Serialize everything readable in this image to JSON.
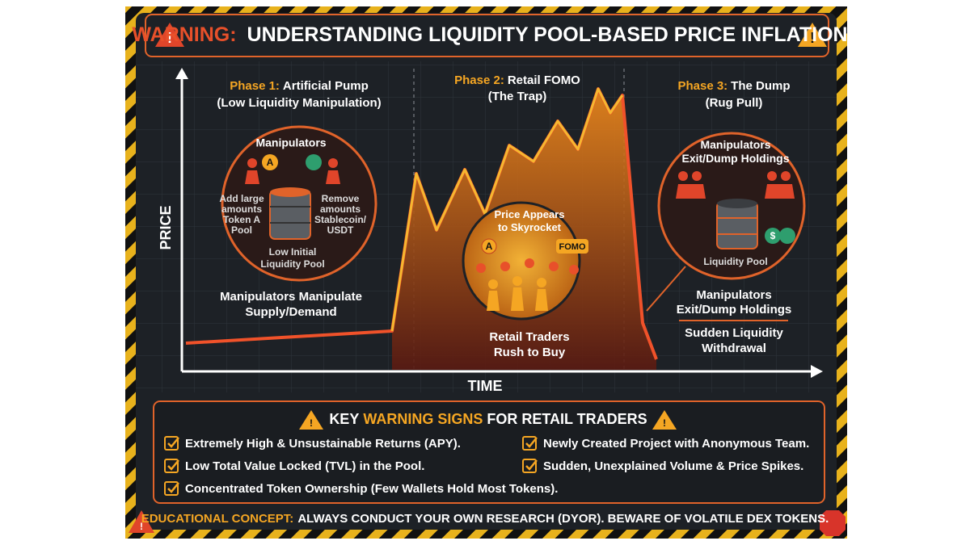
{
  "header": {
    "title_prefix": "WARNING:",
    "title": "UNDERSTANDING LIQUIDITY POOL-BASED PRICE INFLATION"
  },
  "chart": {
    "y_axis": "PRICE",
    "x_axis": "TIME"
  },
  "phases": [
    {
      "label": "Phase 1:",
      "name": "Artificial Pump",
      "subtitle": "(Low Liquidity Manipulation)",
      "circle_title": "Manipulators",
      "coin": "A",
      "left_note": [
        "Add large",
        "amounts",
        "Token A",
        "Pool"
      ],
      "right_note": [
        "Remove",
        "amounts",
        "Stablecoin/",
        "USDT"
      ],
      "pool_label": [
        "Low Initial",
        "Liquidity Pool"
      ],
      "caption": [
        "Manipulators Manipulate",
        "Supply/Demand"
      ]
    },
    {
      "label": "Phase 2:",
      "name": "Retail FOMO",
      "subtitle": "(The Trap)",
      "circle_title": [
        "Price Appears",
        "to Skyrocket"
      ],
      "coin": "A",
      "badge": "FOMO",
      "caption": [
        "Retail Traders",
        "Rush to Buy"
      ]
    },
    {
      "label": "Phase 3:",
      "name": "The Dump",
      "subtitle": "(Rug Pull)",
      "circle_title": [
        "Manipulators",
        "Exit/Dump Holdings"
      ],
      "coin": "$",
      "pool_label": "Liquidity Pool",
      "caption": [
        "Manipulators",
        "Exit/Dump Holdings"
      ],
      "caption2": [
        "Sudden Liquidity",
        "Withdrawal"
      ]
    }
  ],
  "warning_signs": {
    "title_prefix": "KEY",
    "title_highlight": "WARNING SIGNS",
    "title_suffix": "FOR RETAIL TRADERS",
    "items": [
      "Extremely High & Unsustainable Returns (APY).",
      "Low Total Value Locked (TVL) in the Pool.",
      "Concentrated Token Ownership (Few Wallets Hold Most Tokens).",
      "Newly Created Project with Anonymous Team.",
      "Sudden, Unexplained Volume & Price Spikes."
    ]
  },
  "footer": {
    "label": "EDUCATIONAL CONCEPT:",
    "text": "ALWAYS CONDUCT YOUR OWN RESEARCH (DYOR). BEWARE OF VOLATILE DEX TOKENS."
  }
}
